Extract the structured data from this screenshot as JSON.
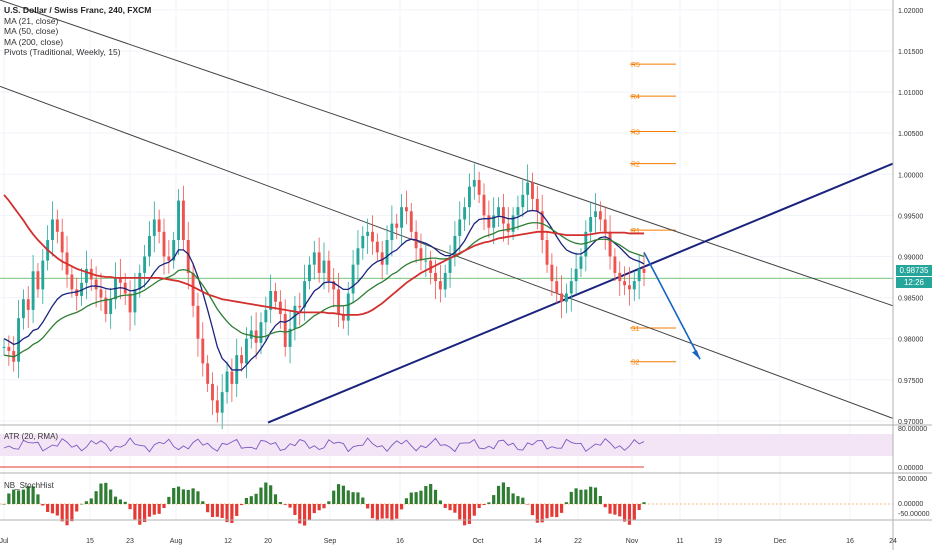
{
  "chart_data": {
    "type": "line",
    "title": "U.S. Dollar / Swiss Franc, 240, FXCM",
    "indicators": [
      "MA (21, close)",
      "MA (50, close)",
      "MA (200, close)",
      "Pivots (Traditional, Weekly, 15)"
    ],
    "x_labels": [
      "Jul",
      "15",
      "23",
      "Aug",
      "12",
      "20",
      "Sep",
      "16",
      "Oct",
      "14",
      "22",
      "Nov",
      "11",
      "19",
      "Dec",
      "16",
      "24"
    ],
    "y_ticks": [
      "1.02000",
      "1.01500",
      "1.01000",
      "1.00500",
      "1.00000",
      "0.99500",
      "0.99000",
      "0.98500",
      "0.98000",
      "0.97500",
      "0.97000"
    ],
    "ylim": [
      0.9695,
      1.0212
    ],
    "last_price": "0.98735",
    "countdown": "12:26",
    "series": [
      {
        "type": "close",
        "color": "#26a69a",
        "values": [
          0.979,
          0.9785,
          0.9772,
          0.9825,
          0.9848,
          0.9835,
          0.9882,
          0.986,
          0.9895,
          0.992,
          0.9945,
          0.993,
          0.9905,
          0.9878,
          0.986,
          0.9852,
          0.9868,
          0.9885,
          0.9872,
          0.986,
          0.985,
          0.983,
          0.9848,
          0.9875,
          0.9868,
          0.9855,
          0.9832,
          0.986,
          0.988,
          0.99,
          0.9925,
          0.9945,
          0.993,
          0.99,
          0.9895,
          0.992,
          0.9968,
          0.992,
          0.988,
          0.984,
          0.98,
          0.977,
          0.9745,
          0.9725,
          0.971,
          0.9735,
          0.976,
          0.9745,
          0.978,
          0.977,
          0.98,
          0.981,
          0.9795,
          0.982,
          0.9835,
          0.9858,
          0.9845,
          0.983,
          0.979,
          0.9812,
          0.984,
          0.9838,
          0.987,
          0.989,
          0.9905,
          0.988,
          0.9895,
          0.987,
          0.986,
          0.983,
          0.9822,
          0.9855,
          0.989,
          0.991,
          0.9925,
          0.993,
          0.9918,
          0.9905,
          0.989,
          0.992,
          0.994,
          0.9935,
          0.996,
          0.9955,
          0.993,
          0.991,
          0.9895,
          0.9895,
          0.988,
          0.987,
          0.986,
          0.988,
          0.99,
          0.9925,
          0.9945,
          0.996,
          0.9985,
          0.9993,
          0.9975,
          0.995,
          0.9935,
          0.995,
          0.996,
          0.994,
          0.993,
          0.995,
          0.996,
          0.9975,
          0.999,
          0.997,
          0.9955,
          0.992,
          0.989,
          0.987,
          0.9855,
          0.9845,
          0.9855,
          0.987,
          0.9885,
          0.99,
          0.993,
          0.9948,
          0.9955,
          0.9945,
          0.993,
          0.99,
          0.988,
          0.987,
          0.9865,
          0.986,
          0.987,
          0.9885,
          0.988
        ]
      },
      {
        "name": "MA (21, close)",
        "color": "#1a237e",
        "values": [
          0.98,
          0.9797,
          0.9793,
          0.9795,
          0.98,
          0.9803,
          0.981,
          0.9812,
          0.982,
          0.983,
          0.984,
          0.9848,
          0.9853,
          0.9855,
          0.9856,
          0.9857,
          0.9859,
          0.9862,
          0.9864,
          0.9864,
          0.9863,
          0.9861,
          0.986,
          0.9861,
          0.9862,
          0.9861,
          0.9858,
          0.9859,
          0.9861,
          0.9865,
          0.9872,
          0.9881,
          0.9888,
          0.9891,
          0.9893,
          0.9898,
          0.9908,
          0.9908,
          0.9903,
          0.9891,
          0.9875,
          0.9856,
          0.9835,
          0.9813,
          0.979,
          0.9776,
          0.977,
          0.9762,
          0.9762,
          0.9762,
          0.9768,
          0.9775,
          0.978,
          0.9788,
          0.9797,
          0.9808,
          0.9816,
          0.9821,
          0.982,
          0.9823,
          0.9828,
          0.9832,
          0.984,
          0.9849,
          0.9858,
          0.9862,
          0.9868,
          0.9869,
          0.9868,
          0.9864,
          0.986,
          0.986,
          0.9864,
          0.9869,
          0.9876,
          0.9884,
          0.989,
          0.9894,
          0.9896,
          0.99,
          0.9905,
          0.9908,
          0.9914,
          0.9919,
          0.9921,
          0.992,
          0.9918,
          0.9916,
          0.9913,
          0.9909,
          0.9904,
          0.9901,
          0.9901,
          0.9905,
          0.9911,
          0.9919,
          0.993,
          0.994,
          0.9945,
          0.9946,
          0.9946,
          0.9947,
          0.9949,
          0.9948,
          0.9946,
          0.9946,
          0.9948,
          0.9951,
          0.9955,
          0.9956,
          0.9955,
          0.9951,
          0.9943,
          0.9934,
          0.9924,
          0.9915,
          0.9908,
          0.9905,
          0.9903,
          0.9903,
          0.9907,
          0.9913,
          0.9919,
          0.9923,
          0.9924,
          0.9921,
          0.9916,
          0.9911,
          0.9905,
          0.9899,
          0.9896,
          0.9894,
          0.9891
        ]
      },
      {
        "name": "MA (50, close)",
        "color": "#2e7d32",
        "values": [
          0.978,
          0.9779,
          0.9778,
          0.9781,
          0.9785,
          0.9788,
          0.9793,
          0.9796,
          0.9801,
          0.9808,
          0.9815,
          0.9821,
          0.9825,
          0.9828,
          0.983,
          0.9832,
          0.9835,
          0.9839,
          0.9842,
          0.9844,
          0.9846,
          0.9847,
          0.9848,
          0.985,
          0.9852,
          0.9853,
          0.9853,
          0.9854,
          0.9856,
          0.9859,
          0.9863,
          0.9867,
          0.9871,
          0.9873,
          0.9875,
          0.9878,
          0.9883,
          0.9884,
          0.9883,
          0.9879,
          0.9873,
          0.9865,
          0.9856,
          0.9846,
          0.9836,
          0.9828,
          0.9821,
          0.9815,
          0.9811,
          0.9807,
          0.9805,
          0.9804,
          0.9802,
          0.9802,
          0.9803,
          0.9806,
          0.9808,
          0.9809,
          0.9808,
          0.9809,
          0.9812,
          0.9814,
          0.9818,
          0.9823,
          0.9828,
          0.9831,
          0.9835,
          0.9838,
          0.984,
          0.984,
          0.984,
          0.9841,
          0.9844,
          0.9848,
          0.9853,
          0.9858,
          0.9862,
          0.9866,
          0.9869,
          0.9873,
          0.9878,
          0.9881,
          0.9886,
          0.989,
          0.9893,
          0.9895,
          0.9896,
          0.9897,
          0.9898,
          0.9898,
          0.9897,
          0.9897,
          0.9898,
          0.99,
          0.9903,
          0.9907,
          0.9912,
          0.9917,
          0.9921,
          0.9924,
          0.9926,
          0.9928,
          0.9931,
          0.9932,
          0.9933,
          0.9934,
          0.9936,
          0.9938,
          0.994,
          0.9941,
          0.9941,
          0.994,
          0.9937,
          0.9933,
          0.9929,
          0.9925,
          0.9921,
          0.9918,
          0.9916,
          0.9915,
          0.9916,
          0.9918,
          0.992,
          0.9921,
          0.9921,
          0.992,
          0.9917,
          0.9914,
          0.991,
          0.9906,
          0.9904,
          0.9902,
          0.99
        ]
      },
      {
        "name": "MA (200, close)",
        "color": "#d32f2f",
        "values": [
          0.9975,
          0.9968,
          0.996,
          0.9952,
          0.9944,
          0.9935,
          0.9927,
          0.992,
          0.9914,
          0.9908,
          0.9903,
          0.9898,
          0.9894,
          0.9891,
          0.9888,
          0.9885,
          0.9883,
          0.9881,
          0.9879,
          0.9877,
          0.9876,
          0.9875,
          0.9875,
          0.9874,
          0.9874,
          0.9874,
          0.9874,
          0.9874,
          0.9874,
          0.9874,
          0.9874,
          0.9874,
          0.9874,
          0.9873,
          0.9872,
          0.9871,
          0.987,
          0.9868,
          0.9866,
          0.9863,
          0.986,
          0.9857,
          0.9854,
          0.9852,
          0.985,
          0.9848,
          0.9847,
          0.9846,
          0.9845,
          0.9844,
          0.9843,
          0.9842,
          0.9841,
          0.984,
          0.9839,
          0.9838,
          0.9837,
          0.9836,
          0.9835,
          0.9834,
          0.9833,
          0.9832,
          0.9832,
          0.9832,
          0.9832,
          0.9832,
          0.9832,
          0.9831,
          0.9831,
          0.983,
          0.9829,
          0.9829,
          0.9829,
          0.9829,
          0.983,
          0.9832,
          0.9835,
          0.9839,
          0.9843,
          0.9848,
          0.9853,
          0.9858,
          0.9863,
          0.9868,
          0.9872,
          0.9876,
          0.988,
          0.9883,
          0.9886,
          0.9889,
          0.9892,
          0.9895,
          0.9898,
          0.9901,
          0.9904,
          0.9907,
          0.991,
          0.9913,
          0.9915,
          0.9917,
          0.9918,
          0.992,
          0.9922,
          0.9923,
          0.9924,
          0.9925,
          0.9926,
          0.9927,
          0.9928,
          0.9929,
          0.993,
          0.993,
          0.993,
          0.9929,
          0.9928,
          0.9927,
          0.9926,
          0.9926,
          0.9926,
          0.9926,
          0.9926,
          0.9927,
          0.9928,
          0.9929,
          0.9929,
          0.9929,
          0.9929,
          0.9929,
          0.9929,
          0.9928,
          0.9928,
          0.9928,
          0.9928
        ]
      }
    ],
    "pivots": [
      {
        "label": "R5",
        "value": 1.0134
      },
      {
        "label": "R4",
        "value": 1.0095
      },
      {
        "label": "R3",
        "value": 1.0052
      },
      {
        "label": "R2",
        "value": 1.0013
      },
      {
        "label": "R1",
        "value": 0.9932
      },
      {
        "label": "S1",
        "value": 0.9813
      },
      {
        "label": "S2",
        "value": 0.9772
      }
    ],
    "horizontal_line": 0.98735,
    "atr_panel": {
      "label": "ATR (20, RMA)",
      "ticks": [
        "80.00000",
        "0.00000"
      ]
    },
    "histogram_panel": {
      "label": "NB_StochHist",
      "ticks": [
        "50.00000",
        "0.00000",
        "-50.00000"
      ]
    }
  },
  "colors": {
    "up": "#26a69a",
    "down": "#ef5350",
    "trendline": "#1a237e",
    "channel": "#444444",
    "pivot": "#f57c00",
    "arrow": "#1565c0",
    "atr": "#7e57c2",
    "hist_up": "#2e7d32",
    "hist_down": "#e53935"
  }
}
